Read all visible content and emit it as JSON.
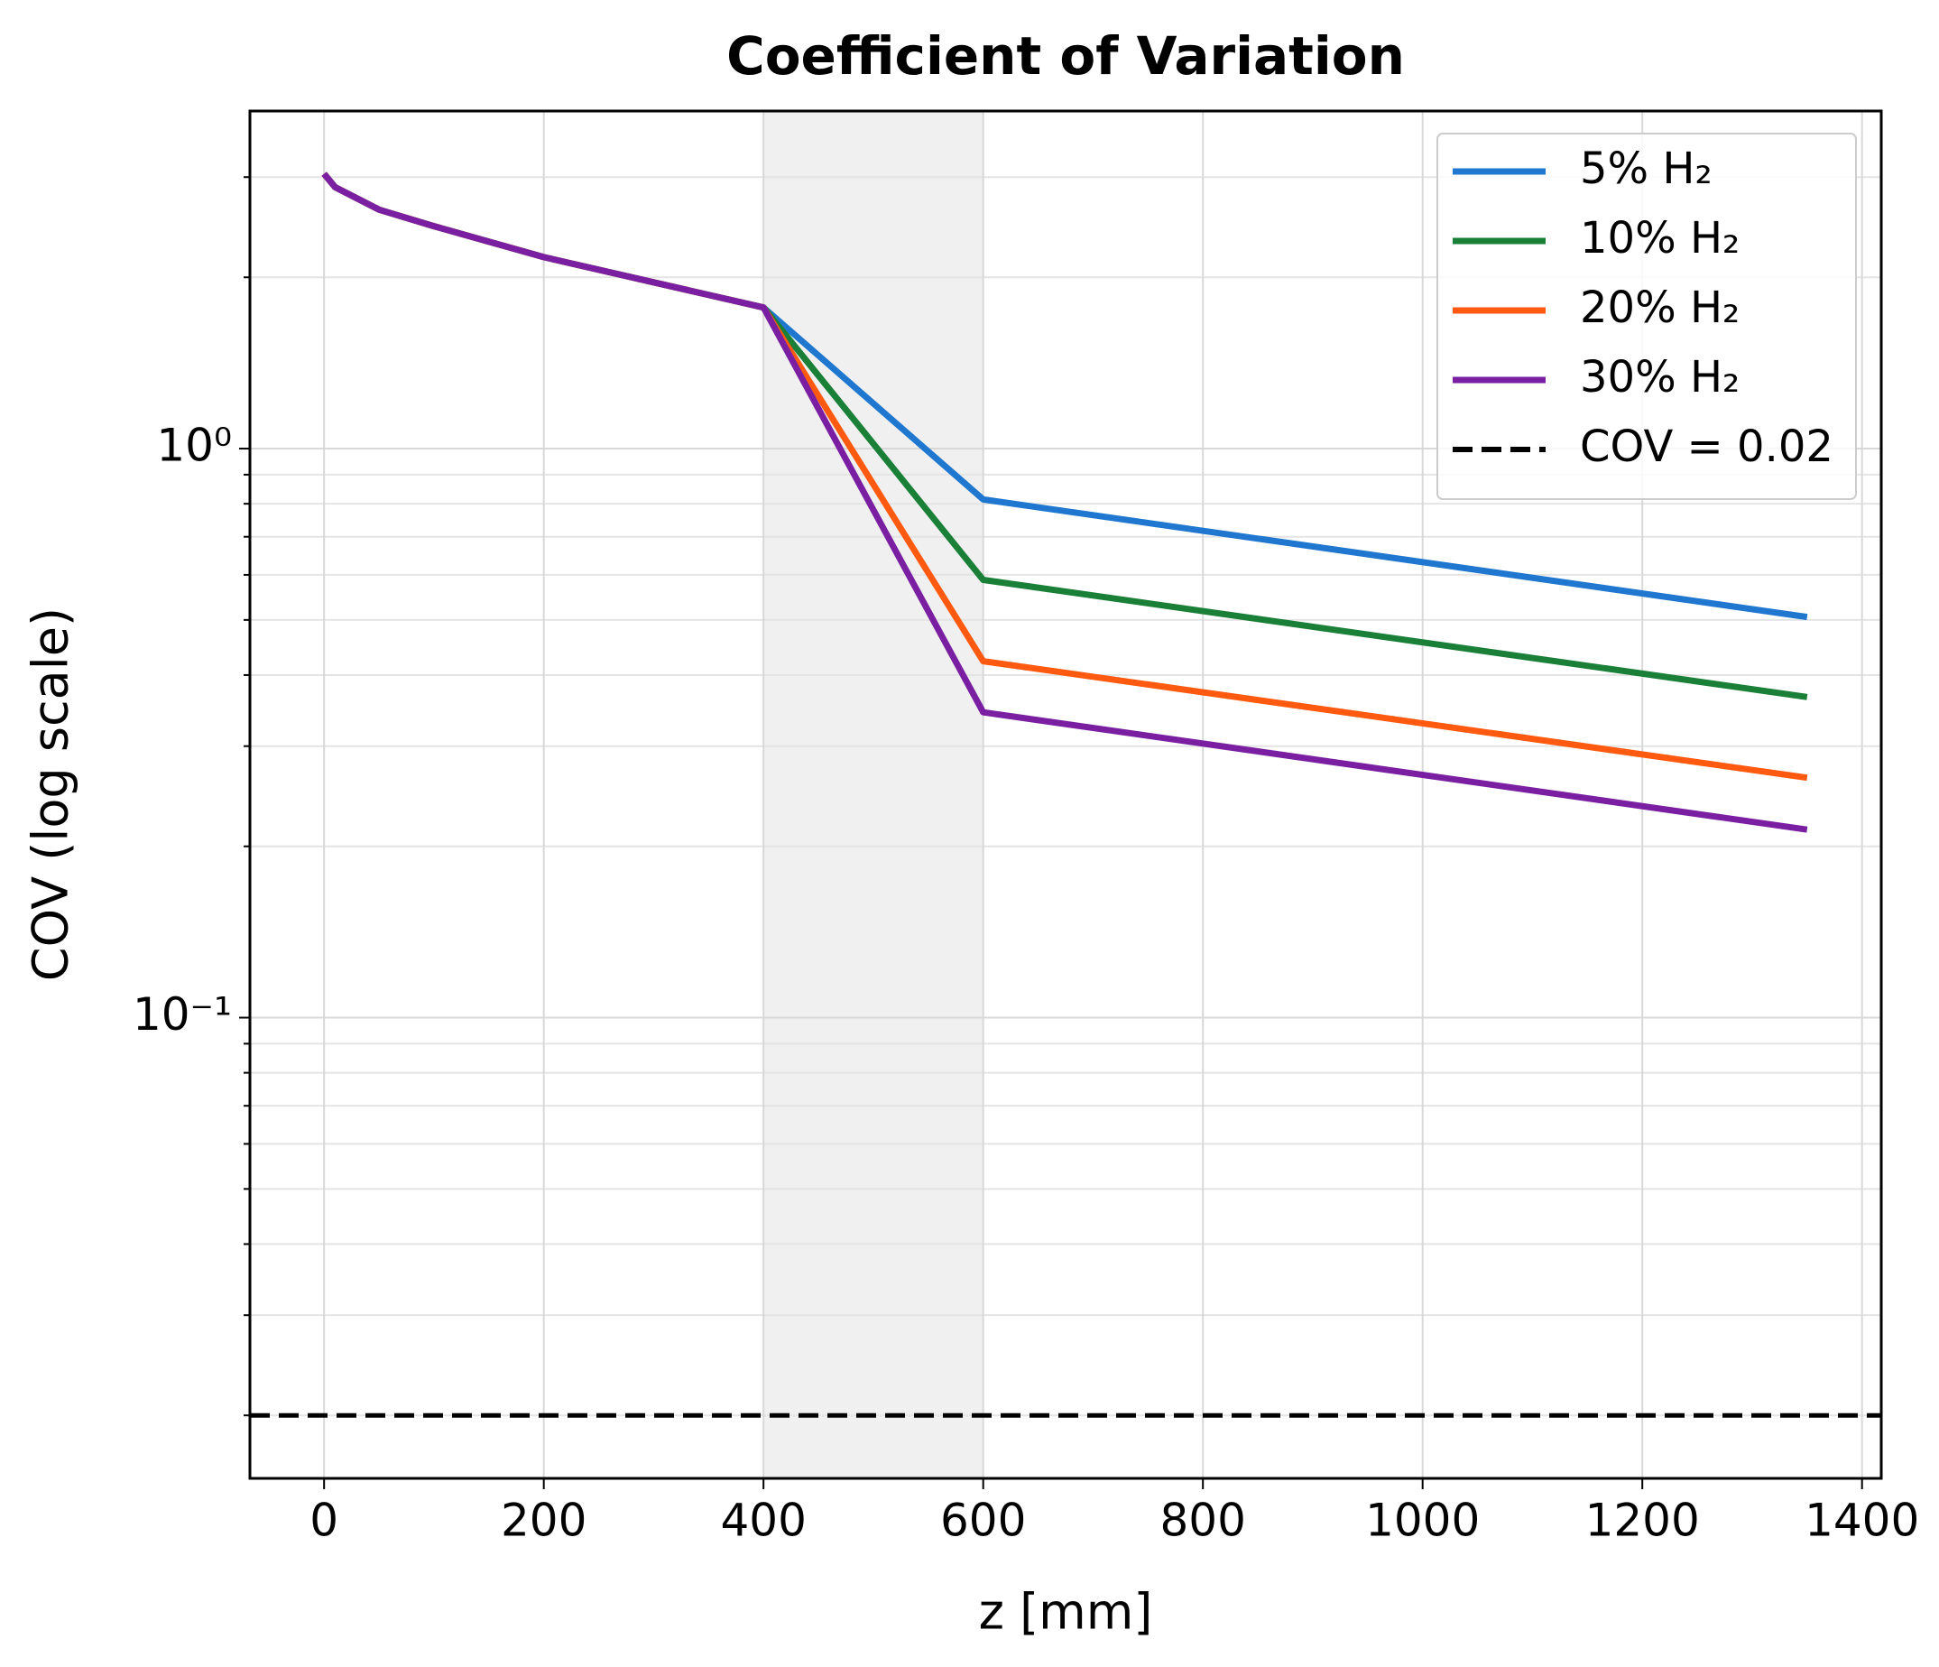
{
  "chart_data": {
    "type": "line",
    "title": "Coefficient of Variation",
    "x_label": "z [mm]",
    "y_label": "COV (log scale)",
    "xlim": [
      -67.5,
      1417.5
    ],
    "xticks": [
      0,
      200,
      400,
      600,
      800,
      1000,
      1200,
      1400
    ],
    "ylim": [
      0.0155,
      3.92
    ],
    "ylog": true,
    "yticks": [
      {
        "value": 0.1,
        "label": "10⁻¹"
      },
      {
        "value": 1,
        "label": "10⁰"
      }
    ],
    "yminorticks": [
      0.02,
      0.03,
      0.04,
      0.05,
      0.06,
      0.07,
      0.08,
      0.09,
      0.2,
      0.3,
      0.4,
      0.5,
      0.6,
      0.7,
      0.8,
      0.9,
      2,
      3
    ],
    "grid": true,
    "legend": "upper right",
    "shaded_span": {
      "x": [
        400,
        600
      ],
      "color": "#f0f0f0"
    },
    "hline": {
      "name": "COV = 0.02",
      "value": 0.02,
      "color": "#000000",
      "dashed": true
    },
    "series": [
      {
        "name": "5% H₂",
        "color": "#1f77cf",
        "x": [
          0,
          10,
          50,
          100,
          200,
          300,
          400,
          600,
          1350
        ],
        "values": [
          3.04,
          2.88,
          2.63,
          2.46,
          2.17,
          1.96,
          1.77,
          0.814,
          0.506
        ]
      },
      {
        "name": "10% H₂",
        "color": "#1a7f37",
        "x": [
          0,
          10,
          50,
          100,
          200,
          300,
          400,
          600,
          1350
        ],
        "values": [
          3.04,
          2.88,
          2.63,
          2.46,
          2.17,
          1.96,
          1.77,
          0.588,
          0.366
        ]
      },
      {
        "name": "20% H₂",
        "color": "#ff5a10",
        "x": [
          0,
          10,
          50,
          100,
          200,
          300,
          400,
          600,
          1350
        ],
        "values": [
          3.04,
          2.88,
          2.63,
          2.46,
          2.17,
          1.96,
          1.77,
          0.423,
          0.264
        ]
      },
      {
        "name": "30% H₂",
        "color": "#7a1fa2",
        "x": [
          0,
          10,
          50,
          100,
          200,
          300,
          400,
          600,
          1350
        ],
        "values": [
          3.04,
          2.88,
          2.63,
          2.46,
          2.17,
          1.96,
          1.77,
          0.344,
          0.214
        ]
      }
    ]
  }
}
